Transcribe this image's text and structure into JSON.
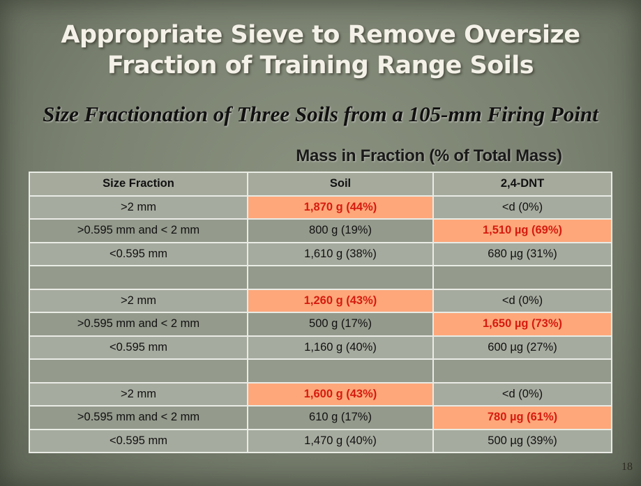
{
  "title": {
    "line1": "Appropriate Sieve to Remove Oversize",
    "line2": "Fraction of Training Range Soils"
  },
  "subtitle": "Size Fractionation of Three Soils from a 105-mm Firing Point",
  "table": {
    "group_header": "Mass in Fraction (% of Total Mass)",
    "headers": [
      "Size Fraction",
      "Soil",
      "2,4-DNT"
    ],
    "rows": [
      {
        "size_fraction": ">2 mm",
        "soil": "1,870 g (44%)",
        "dnt": "<d (0%)",
        "highlight": "soil"
      },
      {
        "size_fraction": ">0.595 mm  and  < 2 mm",
        "soil": "800 g (19%)",
        "dnt": "1,510 µg (69%)",
        "highlight": "dnt"
      },
      {
        "size_fraction": "<0.595 mm",
        "soil": "1,610 g (38%)",
        "dnt": "680 µg (31%)",
        "highlight": ""
      },
      {
        "size_fraction": "",
        "soil": "",
        "dnt": "",
        "highlight": ""
      },
      {
        "size_fraction": ">2 mm",
        "soil": "1,260 g (43%)",
        "dnt": "<d (0%)",
        "highlight": "soil"
      },
      {
        "size_fraction": ">0.595 mm  and  < 2 mm",
        "soil": "500 g (17%)",
        "dnt": "1,650 µg  (73%)",
        "highlight": "dnt"
      },
      {
        "size_fraction": "<0.595 mm",
        "soil": "1,160 g (40%)",
        "dnt": "600 µg (27%)",
        "highlight": ""
      },
      {
        "size_fraction": "",
        "soil": "",
        "dnt": "",
        "highlight": ""
      },
      {
        "size_fraction": ">2 mm",
        "soil": "1,600 g (43%)",
        "dnt": "<d (0%)",
        "highlight": "soil"
      },
      {
        "size_fraction": ">0.595 mm  and  < 2 mm",
        "soil": "610 g (17%)",
        "dnt": "780 µg (61%)",
        "highlight": "dnt"
      },
      {
        "size_fraction": "<0.595 mm",
        "soil": "1,470 g (40%)",
        "dnt": "500 µg (39%)",
        "highlight": ""
      }
    ]
  },
  "page_number": "18",
  "colors": {
    "highlight_fill": "#fda77a",
    "highlight_text": "#d61b10"
  }
}
